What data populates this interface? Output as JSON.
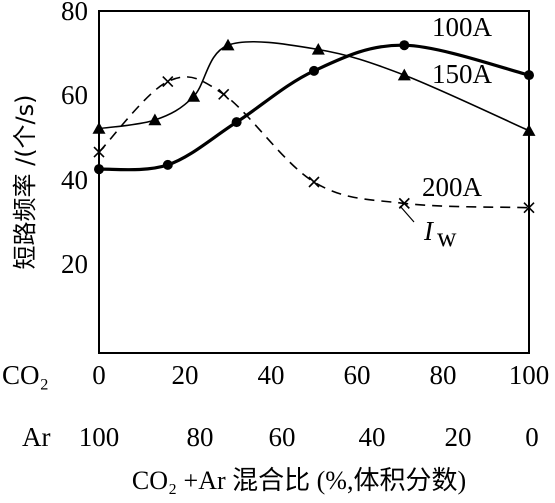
{
  "chart_data": {
    "type": "line",
    "ylabel": "短路频率 /(个/s)",
    "xlabel": "CO₂ +Ar 混合比 (%,体积分数)",
    "x_axis_rows": [
      {
        "name": "CO₂",
        "ticks": [
          "0",
          "20",
          "40",
          "60",
          "80",
          "100"
        ]
      },
      {
        "name": "Ar",
        "ticks": [
          "100",
          "80",
          "60",
          "40",
          "20",
          "0"
        ]
      }
    ],
    "y_ticks": [
      "20",
      "40",
      "60",
      "80"
    ],
    "xlim": [
      0,
      100
    ],
    "ylim": [
      0,
      80
    ],
    "series": [
      {
        "name": "100A",
        "marker": "circle",
        "dash": "solid",
        "width": 3.2,
        "x": [
          0,
          16,
          32,
          50,
          71,
          100
        ],
        "y": [
          43,
          44,
          54,
          66,
          72,
          65
        ]
      },
      {
        "name": "150A",
        "marker": "triangle",
        "dash": "mixed",
        "width": 1.6,
        "x": [
          0,
          13,
          22,
          30,
          51,
          71,
          100
        ],
        "y": [
          52.5,
          54.5,
          60,
          72,
          71,
          65,
          52
        ]
      },
      {
        "name": "200A",
        "marker": "cross",
        "dash": "dashed",
        "width": 1.6,
        "x": [
          0,
          16,
          29,
          50,
          71,
          100
        ],
        "y": [
          47,
          63.5,
          60.5,
          40,
          35,
          34
        ]
      }
    ],
    "series_label_extra": {
      "text_main": "I",
      "text_sub": "w"
    }
  }
}
